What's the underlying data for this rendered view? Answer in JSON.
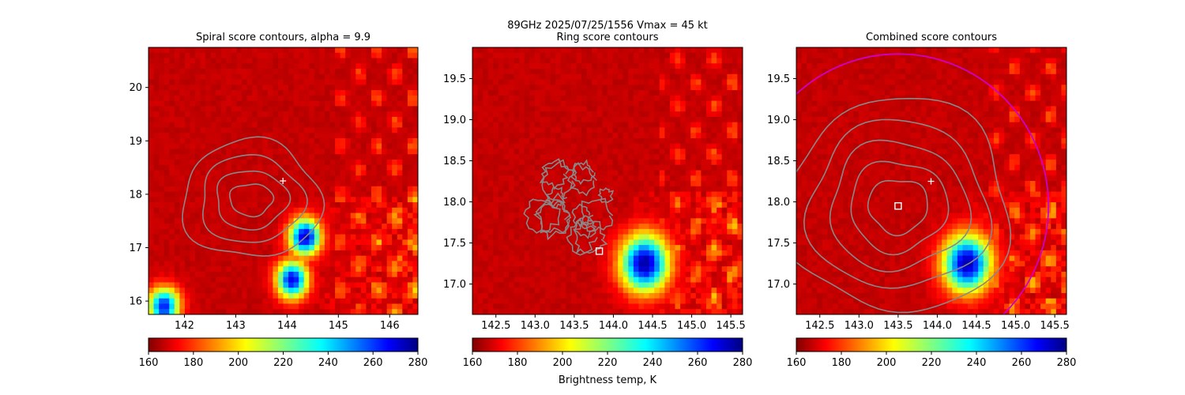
{
  "figure": {
    "suptitle_line1": "89GHz  2025/07/25/1556    Vmax = 45 kt",
    "colorbar_label": "Brightness temp, K"
  },
  "chart_data": [
    {
      "type": "heatmap",
      "title": "Spiral score contours, alpha =  9.9",
      "xlabel": "",
      "ylabel": "",
      "xlim": [
        141.3,
        146.55
      ],
      "ylim": [
        15.75,
        20.75
      ],
      "xticks": [
        142,
        143,
        144,
        145,
        146
      ],
      "yticks": [
        16,
        17,
        18,
        19,
        20
      ],
      "colorbar": {
        "range": [
          160,
          280
        ],
        "ticks": [
          160,
          180,
          200,
          220,
          240,
          260,
          280
        ],
        "cmap": "jet_r"
      },
      "markers": [
        {
          "kind": "plus",
          "x": 143.92,
          "y": 18.25,
          "color": "#ffffff"
        }
      ],
      "contours": {
        "kind": "concentric",
        "center": [
          143.3,
          17.9
        ],
        "color": "#888888",
        "radii_lon": [
          0.42,
          0.7,
          1.0,
          1.35
        ],
        "radii_lat": [
          0.3,
          0.55,
          0.82,
          1.1
        ]
      },
      "cold_cores": [
        {
          "lon": 144.35,
          "lat": 17.2,
          "tb": 165
        },
        {
          "lon": 144.1,
          "lat": 16.4,
          "tb": 170
        },
        {
          "lon": 141.6,
          "lat": 15.9,
          "tb": 175
        }
      ]
    },
    {
      "type": "heatmap",
      "title": "Ring score contours",
      "xlabel": "",
      "ylabel": "",
      "xlim": [
        142.2,
        145.65
      ],
      "ylim": [
        16.63,
        19.88
      ],
      "xticks": [
        142.5,
        143.0,
        143.5,
        144.0,
        144.5,
        145.0,
        145.5
      ],
      "yticks": [
        17.0,
        17.5,
        18.0,
        18.5,
        19.0,
        19.5
      ],
      "colorbar": {
        "range": [
          160,
          280
        ],
        "ticks": [
          160,
          180,
          200,
          220,
          240,
          260,
          280
        ],
        "cmap": "jet_r"
      },
      "markers": [
        {
          "kind": "square",
          "x": 143.82,
          "y": 17.4,
          "color": "#ffffff"
        }
      ],
      "contours": {
        "kind": "noisy-disk",
        "center": [
          143.5,
          17.95
        ],
        "radius_lon": 0.65,
        "radius_lat": 0.6,
        "color": "#888888"
      },
      "cold_cores": [
        {
          "lon": 144.4,
          "lat": 17.25,
          "tb": 162
        }
      ]
    },
    {
      "type": "heatmap",
      "title": "Combined score contours",
      "xlabel": "",
      "ylabel": "",
      "xlim": [
        142.2,
        145.65
      ],
      "ylim": [
        16.63,
        19.88
      ],
      "xticks": [
        142.5,
        143.0,
        143.5,
        144.0,
        144.5,
        145.0,
        145.5
      ],
      "yticks": [
        17.0,
        17.5,
        18.0,
        18.5,
        19.0,
        19.5
      ],
      "colorbar": {
        "range": [
          160,
          280
        ],
        "ticks": [
          160,
          180,
          200,
          220,
          240,
          260,
          280
        ],
        "cmap": "jet_r"
      },
      "markers": [
        {
          "kind": "plus",
          "x": 143.92,
          "y": 18.25,
          "color": "#ffffff"
        },
        {
          "kind": "square",
          "x": 143.5,
          "y": 17.95,
          "color": "#ffffff"
        }
      ],
      "contours": {
        "kind": "concentric",
        "center": [
          143.5,
          17.95
        ],
        "color": "#888888",
        "radii_lon": [
          0.38,
          0.62,
          0.88,
          1.15,
          1.45
        ],
        "radii_lat": [
          0.33,
          0.55,
          0.78,
          1.02,
          1.3
        ]
      },
      "ring": {
        "center": [
          143.5,
          17.95
        ],
        "radius_lon": 1.92,
        "radius_lat": 1.85,
        "color": "#cc00cc"
      },
      "cold_cores": [
        {
          "lon": 144.38,
          "lat": 17.25,
          "tb": 163
        }
      ]
    }
  ]
}
